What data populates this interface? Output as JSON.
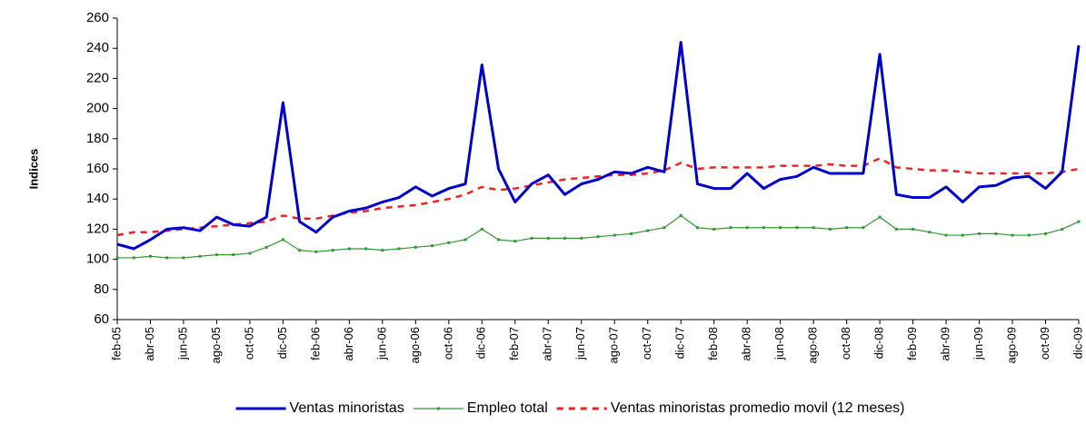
{
  "chart_data": {
    "type": "line",
    "y_label": "Indices",
    "categories": [
      "feb-05",
      null,
      "abr-05",
      null,
      "jun-05",
      null,
      "ago-05",
      null,
      "oct-05",
      null,
      "dic-05",
      null,
      "feb-06",
      null,
      "abr-06",
      null,
      "jun-06",
      null,
      "ago-06",
      null,
      "oct-06",
      null,
      "dic-06",
      null,
      "feb-07",
      null,
      "abr-07",
      null,
      "jun-07",
      null,
      "ago-07",
      null,
      "oct-07",
      null,
      "dic-07",
      null,
      "feb-08",
      null,
      "abr-08",
      null,
      "jun-08",
      null,
      "ago-08",
      null,
      "oct-08",
      null,
      "dic-08",
      null,
      "feb-09",
      null,
      "abr-09",
      null,
      "jun-09",
      null,
      "ago-09",
      null,
      "oct-09",
      null,
      "dic-09"
    ],
    "series": [
      {
        "name": "Ventas minoristas",
        "color": "#0000cc",
        "style": "solid",
        "values": [
          110,
          107,
          113,
          120,
          121,
          119,
          128,
          123,
          122,
          128,
          204,
          125,
          118,
          128,
          132,
          134,
          138,
          141,
          148,
          142,
          147,
          150,
          229,
          160,
          138,
          150,
          156,
          143,
          150,
          153,
          158,
          157,
          161,
          158,
          244,
          150,
          147,
          147,
          157,
          147,
          153,
          155,
          161,
          157,
          157,
          157,
          236,
          143,
          141,
          141,
          148,
          138,
          148,
          149,
          154,
          155,
          147,
          158,
          242
        ]
      },
      {
        "name": "Empleo total",
        "color": "#339933",
        "style": "marker",
        "values": [
          101,
          101,
          102,
          101,
          101,
          102,
          103,
          103,
          104,
          108,
          113,
          106,
          105,
          106,
          107,
          107,
          106,
          107,
          108,
          109,
          111,
          113,
          120,
          113,
          112,
          114,
          114,
          114,
          114,
          115,
          116,
          117,
          119,
          121,
          129,
          121,
          120,
          121,
          121,
          121,
          121,
          121,
          121,
          120,
          121,
          121,
          128,
          120,
          120,
          118,
          116,
          116,
          117,
          117,
          116,
          116,
          117,
          120,
          125
        ]
      },
      {
        "name": "Ventas minoristas promedio movil (12 meses)",
        "color": "#ee2222",
        "style": "dashed",
        "values": [
          116,
          118,
          118,
          119,
          120,
          121,
          122,
          123,
          124,
          125,
          129,
          127,
          127,
          129,
          131,
          132,
          134,
          135,
          136,
          138,
          140,
          143,
          148,
          146,
          147,
          149,
          151,
          153,
          154,
          155,
          156,
          156,
          157,
          159,
          164,
          160,
          161,
          161,
          161,
          161,
          162,
          162,
          162,
          163,
          162,
          162,
          167,
          161,
          160,
          159,
          159,
          158,
          157,
          157,
          157,
          157,
          157,
          158,
          160
        ]
      }
    ],
    "ylim": [
      60,
      260
    ],
    "yticks": [
      60,
      80,
      100,
      120,
      140,
      160,
      180,
      200,
      220,
      240,
      260
    ],
    "grid": false,
    "legend": "bottom"
  }
}
